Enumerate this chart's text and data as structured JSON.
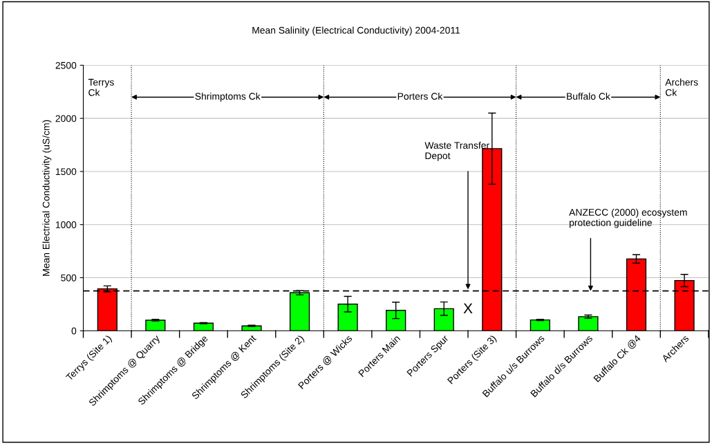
{
  "chart_data": {
    "type": "bar",
    "title": "Mean Salinity (Electrical Conductivity) 2004-2011",
    "ylabel": "Mean Electrical Conductivity (uS/cm)",
    "categories": [
      "Terrys (Site 1)",
      "Shrimptoms @ Quarry",
      "Shrimptoms @ Bridge",
      "Shrimptoms @ Kent",
      "Shrimptoms (Site 2)",
      "Porters @ Wicks",
      "Porters Main",
      "Porters Spur",
      "Porters (Site 3)",
      "Buffalo u/s Burrows",
      "Buffalo d/s Burrows",
      "Buffalo Ck @4",
      "Archers"
    ],
    "values": [
      395,
      100,
      72,
      46,
      358,
      251,
      192,
      208,
      1715,
      102,
      133,
      677,
      473
    ],
    "errors": [
      28,
      8,
      5,
      6,
      20,
      73,
      77,
      63,
      335,
      6,
      15,
      40,
      58
    ],
    "colors": [
      "#ff0000",
      "#00ff00",
      "#00ff00",
      "#00ff00",
      "#00ff00",
      "#00ff00",
      "#00ff00",
      "#00ff00",
      "#ff0000",
      "#00ff00",
      "#00ff00",
      "#ff0000",
      "#ff0000"
    ],
    "ylim": [
      0,
      2500
    ],
    "yticks": [
      0,
      500,
      1000,
      1500,
      2000,
      2500
    ],
    "grid": "y",
    "ref_lines": [
      {
        "axis": "y",
        "value": 375,
        "label": "ANZECC (2000) ecosystem protection guideline",
        "color": "#000000",
        "line_style": "dashed"
      }
    ],
    "annotations": [
      "Terrys Ck",
      "Shrimptoms Ck",
      "Porters Ck",
      "Buffalo Ck",
      "Archers Ck",
      "Waste Transfer Depot",
      "X"
    ]
  }
}
